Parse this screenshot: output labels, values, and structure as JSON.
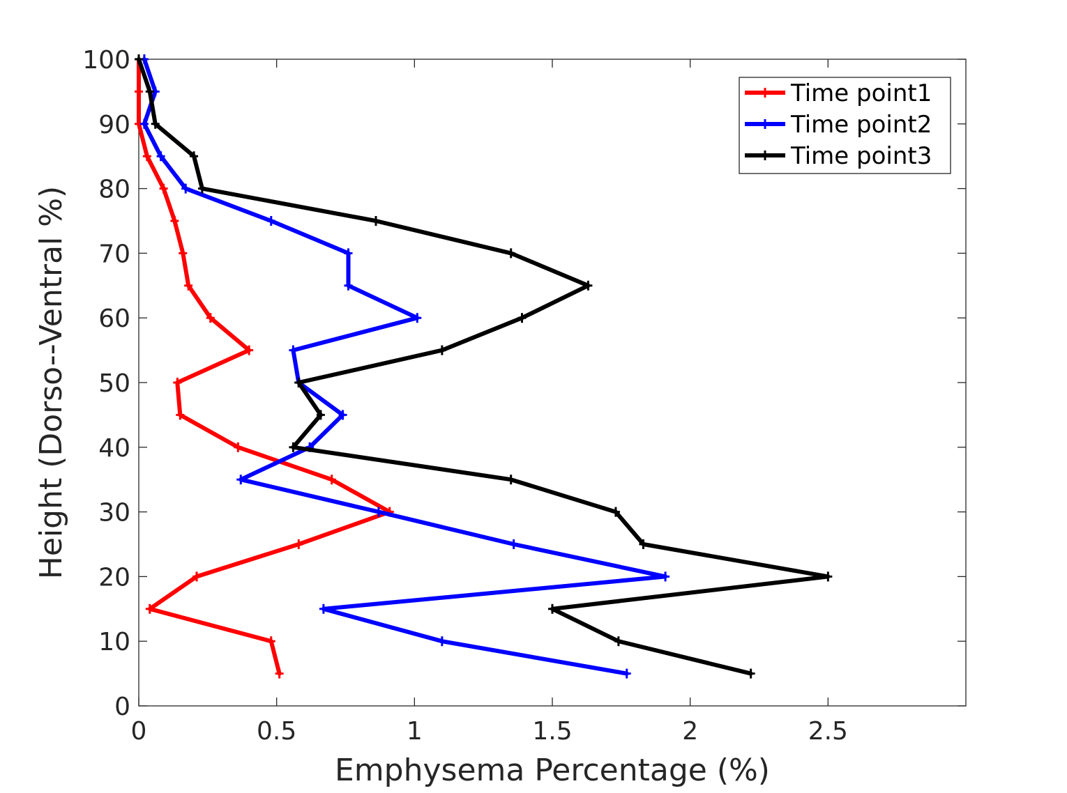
{
  "chart_data": {
    "type": "line",
    "xlabel": "Emphysema Percentage (%)",
    "ylabel": "Height (Dorso--Ventral %)",
    "xlim": [
      0,
      3
    ],
    "ylim": [
      0,
      100
    ],
    "xticks": [
      0,
      0.5,
      1,
      1.5,
      2,
      2.5
    ],
    "xtick_labels": [
      "0",
      "0.5",
      "1",
      "1.5",
      "2",
      "2.5"
    ],
    "yticks": [
      0,
      10,
      20,
      30,
      40,
      50,
      60,
      70,
      80,
      90,
      100
    ],
    "ytick_labels": [
      "0",
      "10",
      "20",
      "30",
      "40",
      "50",
      "60",
      "70",
      "80",
      "90",
      "100"
    ],
    "grid": false,
    "legend_position": "top-right",
    "series": [
      {
        "name": "Time point1",
        "color": "#ff0000",
        "points": [
          [
            0.51,
            5
          ],
          [
            0.48,
            10
          ],
          [
            0.04,
            15
          ],
          [
            0.21,
            20
          ],
          [
            0.58,
            25
          ],
          [
            0.91,
            30
          ],
          [
            0.7,
            35
          ],
          [
            0.36,
            40
          ],
          [
            0.15,
            45
          ],
          [
            0.14,
            50
          ],
          [
            0.4,
            55
          ],
          [
            0.26,
            60
          ],
          [
            0.18,
            65
          ],
          [
            0.16,
            70
          ],
          [
            0.13,
            75
          ],
          [
            0.09,
            80
          ],
          [
            0.03,
            85
          ],
          [
            0.0,
            90
          ],
          [
            0.0,
            95
          ],
          [
            0.0,
            100
          ]
        ]
      },
      {
        "name": "Time point2",
        "color": "#0000ff",
        "points": [
          [
            1.77,
            5
          ],
          [
            1.1,
            10
          ],
          [
            0.67,
            15
          ],
          [
            1.91,
            20
          ],
          [
            1.36,
            25
          ],
          [
            0.87,
            30
          ],
          [
            0.37,
            35
          ],
          [
            0.62,
            40
          ],
          [
            0.74,
            45
          ],
          [
            0.58,
            50
          ],
          [
            0.56,
            55
          ],
          [
            1.01,
            60
          ],
          [
            0.76,
            65
          ],
          [
            0.76,
            70
          ],
          [
            0.48,
            75
          ],
          [
            0.17,
            80
          ],
          [
            0.08,
            85
          ],
          [
            0.02,
            90
          ],
          [
            0.06,
            95
          ],
          [
            0.02,
            100
          ]
        ]
      },
      {
        "name": "Time point3",
        "color": "#000000",
        "points": [
          [
            2.22,
            5
          ],
          [
            1.74,
            10
          ],
          [
            1.5,
            15
          ],
          [
            2.5,
            20
          ],
          [
            1.83,
            25
          ],
          [
            1.73,
            30
          ],
          [
            1.35,
            35
          ],
          [
            0.56,
            40
          ],
          [
            0.66,
            45
          ],
          [
            0.58,
            50
          ],
          [
            1.1,
            55
          ],
          [
            1.39,
            60
          ],
          [
            1.63,
            65
          ],
          [
            1.35,
            70
          ],
          [
            0.86,
            75
          ],
          [
            0.23,
            80
          ],
          [
            0.2,
            85
          ],
          [
            0.06,
            90
          ],
          [
            0.04,
            95
          ],
          [
            0.0,
            100
          ]
        ]
      }
    ]
  }
}
